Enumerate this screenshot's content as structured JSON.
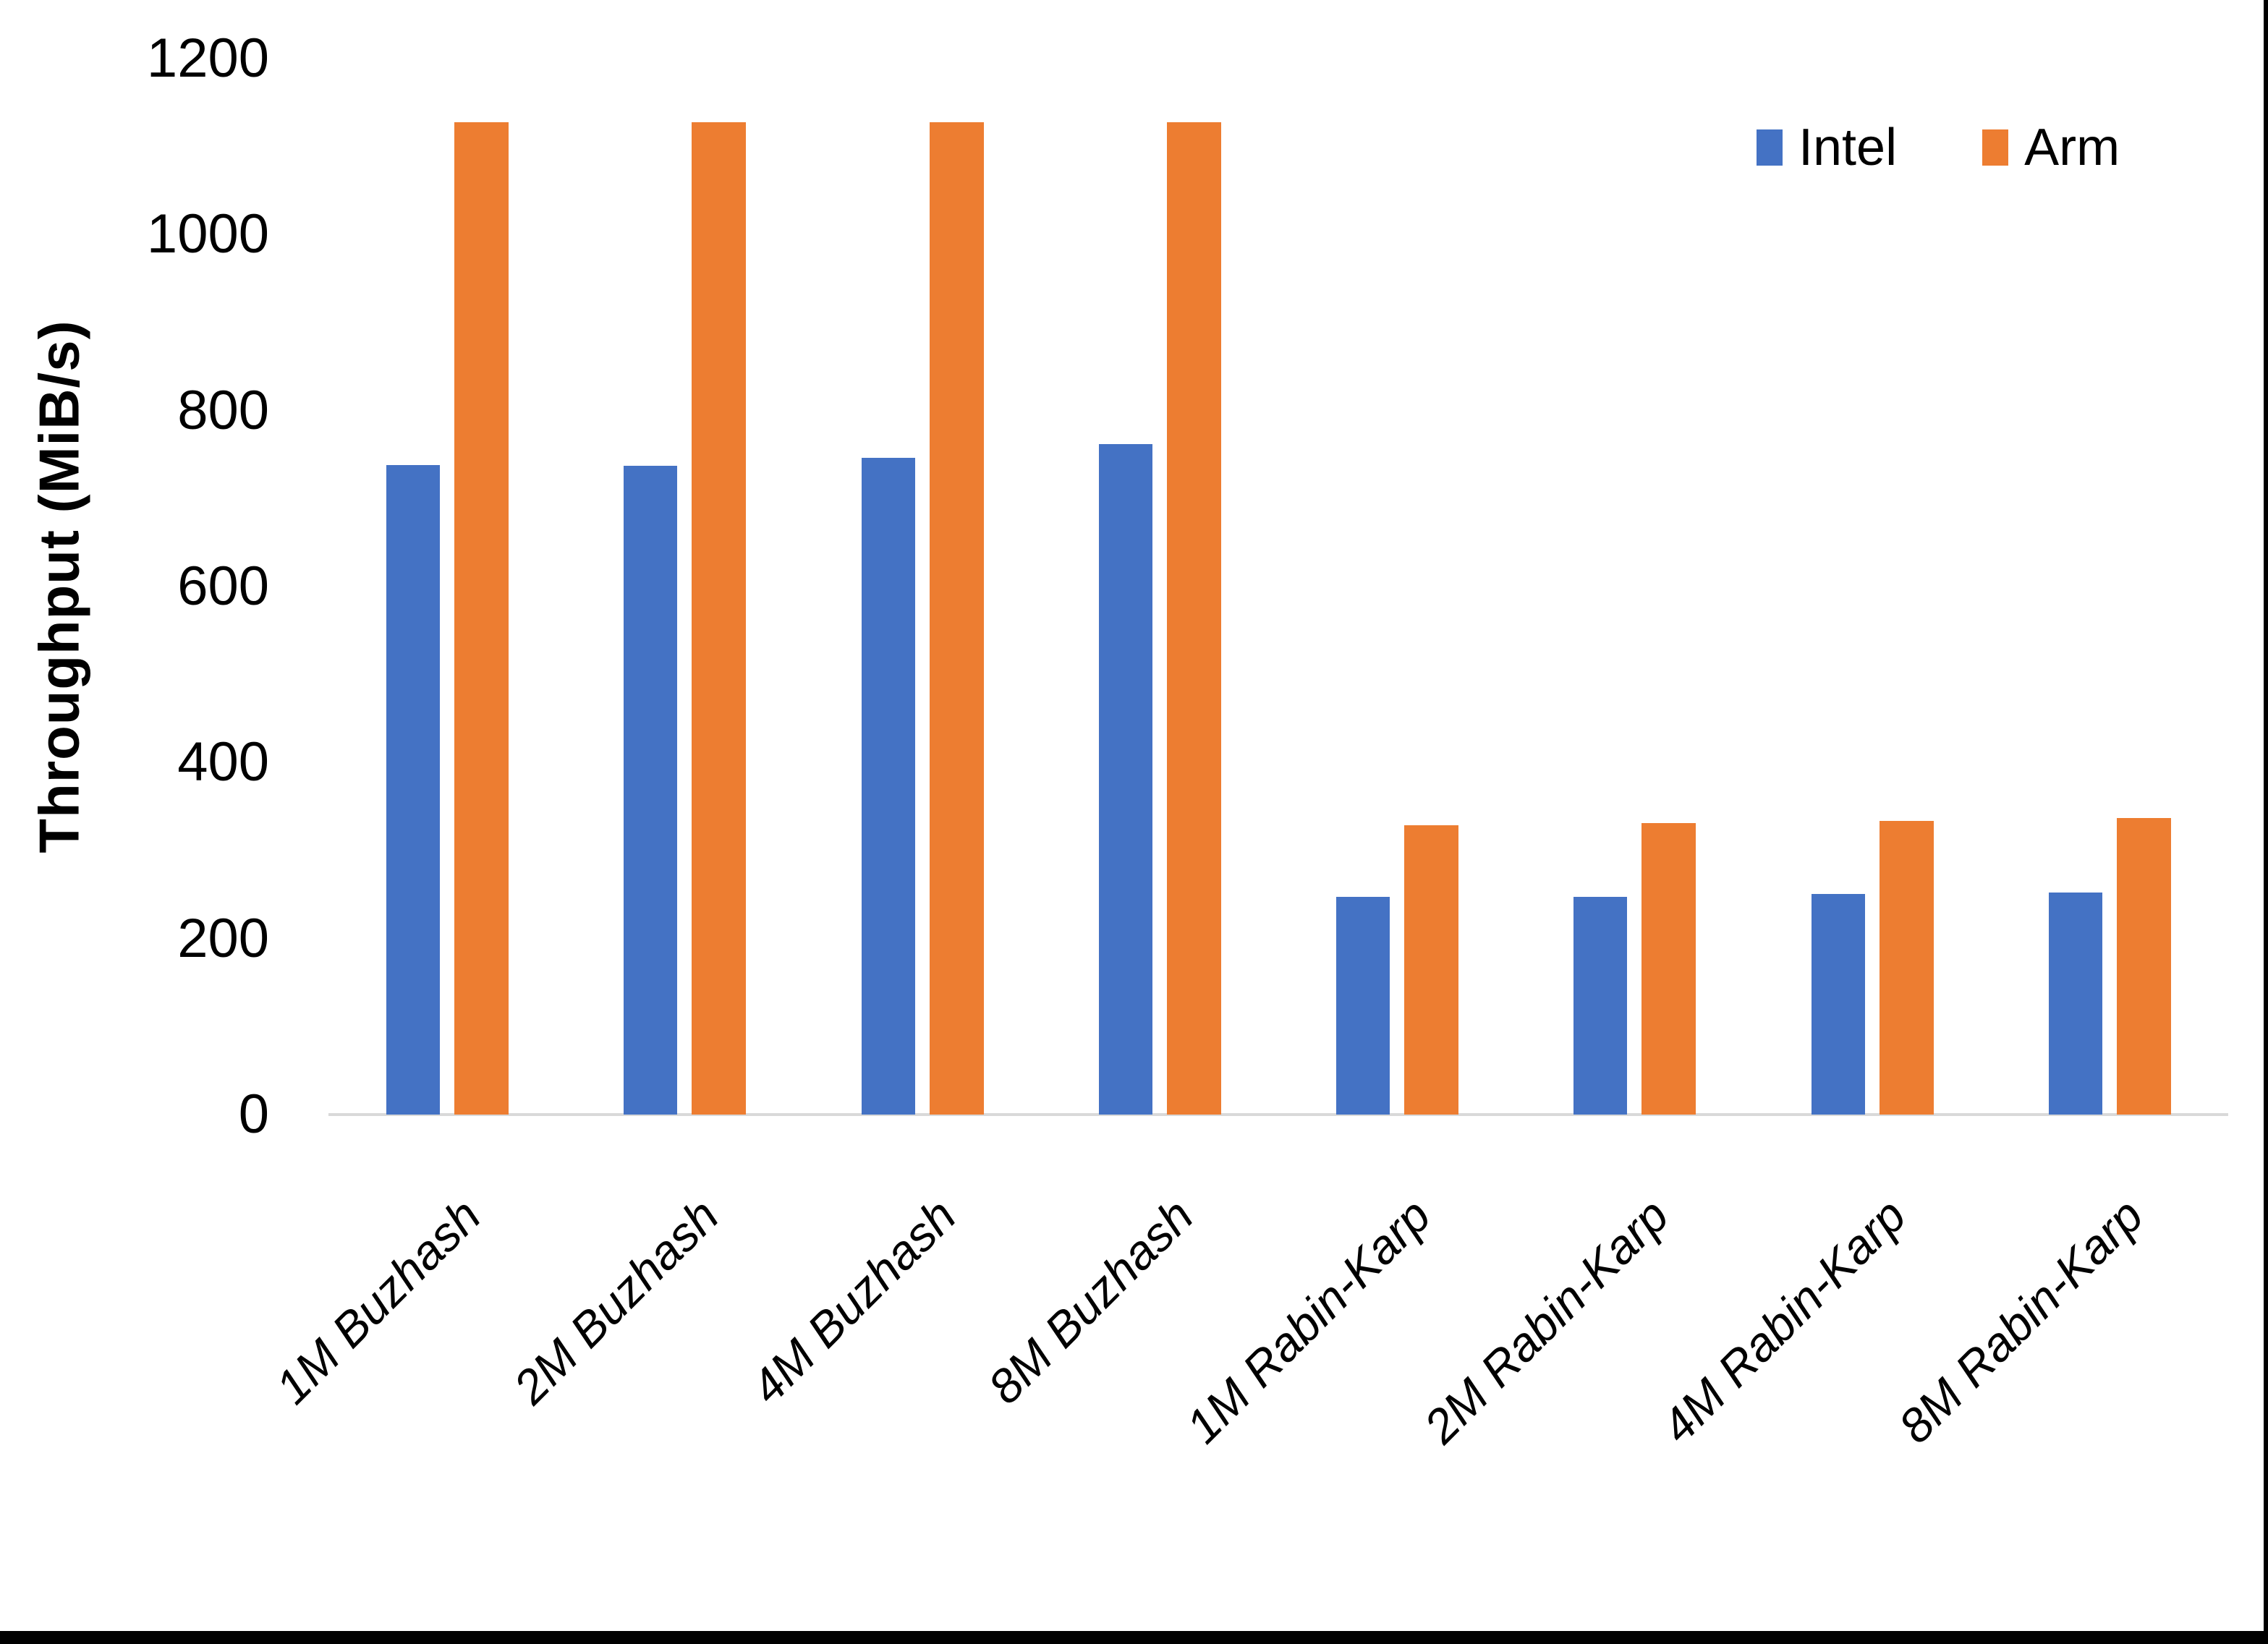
{
  "chart_data": {
    "type": "bar",
    "title": "",
    "ylabel": "Throughput (MiB/s)",
    "xlabel": "",
    "categories": [
      "1M Buzhash",
      "2M Buzhash",
      "4M Buzhash",
      "8M Buzhash",
      "1M Rabin-Karp",
      "2M Rabin-Karp",
      "4M Rabin-Karp",
      "8M Rabin-Karp"
    ],
    "series": [
      {
        "name": "Intel",
        "color": "#4472C4",
        "values": [
          738,
          737,
          746,
          762,
          247,
          247,
          251,
          252
        ]
      },
      {
        "name": "Arm",
        "color": "#ED7D31",
        "values": [
          1128,
          1128,
          1128,
          1128,
          329,
          331,
          334,
          337
        ]
      }
    ],
    "ylim": [
      0,
      1200
    ],
    "yticks": [
      0,
      200,
      400,
      600,
      800,
      1000,
      1200
    ],
    "grid": false,
    "legend_position": "top-right",
    "colors": {
      "axis_line": "#D9D9D9",
      "page_edge": "#000000",
      "text": "#000000",
      "background": "#FFFFFF"
    }
  }
}
